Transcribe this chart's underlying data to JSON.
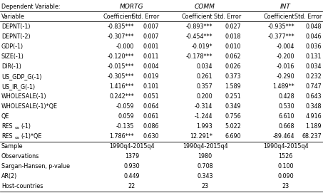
{
  "title": "Dependent Variable:",
  "col_groups": [
    "MORTG",
    "COMM",
    "INT"
  ],
  "col_headers": [
    "Variable",
    "Coefficient",
    "Std. Error",
    "Coefficient",
    "Std. Error",
    "Coefficient",
    "Std. Error"
  ],
  "rows": [
    [
      "DEPNT(-1)",
      "-0.835***",
      "0.007",
      "-0.893***",
      "0.027",
      "-0.935***",
      "0.048"
    ],
    [
      "DEPNT(-2)",
      "-0.307***",
      "0.007",
      "-0.454***",
      "0.018",
      "-0.377***",
      "0.046"
    ],
    [
      "GDP(-1)",
      "-0.000",
      "0.001",
      "-0.019*",
      "0.010",
      "-0.004",
      "0.036"
    ],
    [
      "SIZE(-1)",
      "-0.120***",
      "0.011",
      "-0.178***",
      "0.062",
      "-0.200",
      "0.131"
    ],
    [
      "DIR(-1)",
      "-0.015***",
      "0.004",
      "0.034",
      "0.026",
      "-0.016",
      "0.034"
    ],
    [
      "US_GDP_G(-1)",
      "-0.305***",
      "0.019",
      "0.261",
      "0.373",
      "-0.290",
      "0.232"
    ],
    [
      "US_IR_G(-1)",
      "1.416***",
      "0.101",
      "0.357",
      "1.589",
      "1.489**",
      "0.747"
    ],
    [
      "WHOLESALE(-1)",
      "0.242***",
      "0.051",
      "0.200",
      "0.251",
      "0.428",
      "0.643"
    ],
    [
      "WHOLESALE(-1)*QE",
      "-0.059",
      "0.064",
      "-0.314",
      "0.349",
      "0.530",
      "0.348"
    ],
    [
      "QE",
      "0.059",
      "0.061",
      "-1.244",
      "0.756",
      "6.610",
      "4.916"
    ],
    [
      "RESos(-1)",
      "-0.135",
      "0.086",
      "1.993",
      "5.022",
      "0.668",
      "1.189"
    ],
    [
      "RESos(-1)*QE",
      "1.786***",
      "0.630",
      "12.291*",
      "6.690",
      "-89.464",
      "68.237"
    ]
  ],
  "footer_rows": [
    [
      "Sample",
      "1990q4-2015q4",
      "1990q4-2015q4",
      "1990q4-2015q4"
    ],
    [
      "Observations",
      "1379",
      "1980",
      "1526"
    ],
    [
      "Sargan-Hansen, p-value",
      "0.930",
      "0.708",
      "0.100"
    ],
    [
      "AR(2)",
      "0.449",
      "0.343",
      "0.090"
    ],
    [
      "Host-countries",
      "22",
      "23",
      "23"
    ]
  ],
  "background": "#ffffff",
  "text_color": "#000000",
  "line_color": "#000000",
  "font_size": 5.8,
  "title_font_size": 6.0,
  "group_font_size": 6.5
}
